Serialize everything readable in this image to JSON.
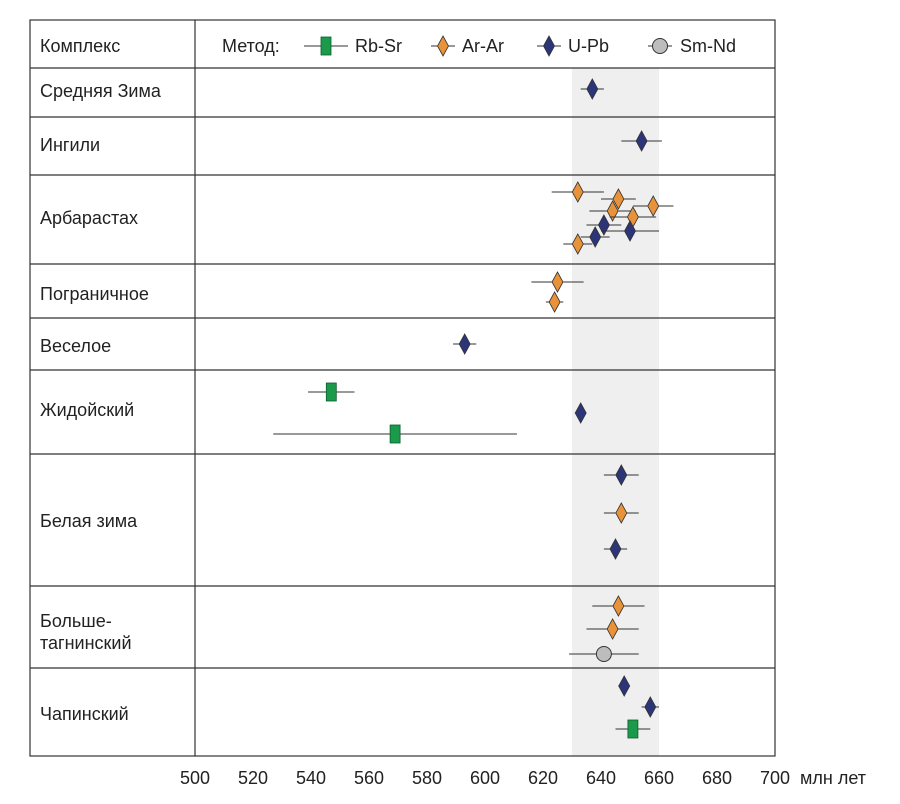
{
  "chart_data": {
    "type": "scatter",
    "header_label": "Комплекс",
    "legend_title": "Метод:",
    "x_unit": "млн лет",
    "xlim": [
      500,
      700
    ],
    "xticks": [
      500,
      520,
      540,
      560,
      580,
      600,
      620,
      640,
      660,
      680,
      700
    ],
    "highlight_band": [
      630,
      660
    ],
    "series": [
      {
        "name": "Rb-Sr",
        "color": "#1a9a4a",
        "marker": "square"
      },
      {
        "name": "Ar-Ar",
        "color": "#e8923a",
        "marker": "diamond"
      },
      {
        "name": "U-Pb",
        "color": "#2b3578",
        "marker": "diamond"
      },
      {
        "name": "Sm-Nd",
        "color": "#bdbdbd",
        "marker": "circle"
      }
    ],
    "groups": [
      {
        "name": "Средняя Зима",
        "points": [
          {
            "method": "U-Pb",
            "age": 637,
            "err": 4
          }
        ]
      },
      {
        "name": "Ингили",
        "points": [
          {
            "method": "U-Pb",
            "age": 654,
            "err": 7
          }
        ]
      },
      {
        "name": "Арбарастах",
        "points": [
          {
            "method": "Ar-Ar",
            "age": 632,
            "err": 9
          },
          {
            "method": "Ar-Ar",
            "age": 646,
            "err": 6
          },
          {
            "method": "Ar-Ar",
            "age": 658,
            "err": 7
          },
          {
            "method": "Ar-Ar",
            "age": 644,
            "err": 8
          },
          {
            "method": "Ar-Ar",
            "age": 651,
            "err": 8
          },
          {
            "method": "U-Pb",
            "age": 641,
            "err": 6
          },
          {
            "method": "U-Pb",
            "age": 650,
            "err": 10
          },
          {
            "method": "U-Pb",
            "age": 638,
            "err": 5
          },
          {
            "method": "Ar-Ar",
            "age": 632,
            "err": 5
          }
        ]
      },
      {
        "name": "Пограничное",
        "points": [
          {
            "method": "Ar-Ar",
            "age": 625,
            "err": 9
          },
          {
            "method": "Ar-Ar",
            "age": 624,
            "err": 3
          }
        ]
      },
      {
        "name": "Веселое",
        "points": [
          {
            "method": "U-Pb",
            "age": 593,
            "err": 4
          }
        ]
      },
      {
        "name": "Жидойский",
        "points": [
          {
            "method": "Rb-Sr",
            "age": 547,
            "err": 8
          },
          {
            "method": "U-Pb",
            "age": 633,
            "err": 2
          },
          {
            "method": "Rb-Sr",
            "age": 569,
            "err": 42
          }
        ]
      },
      {
        "name": "Белая зима",
        "points": [
          {
            "method": "U-Pb",
            "age": 647,
            "err": 6
          },
          {
            "method": "Ar-Ar",
            "age": 647,
            "err": 6
          },
          {
            "method": "U-Pb",
            "age": 645,
            "err": 4
          }
        ]
      },
      {
        "name": "Больше-тагнинский",
        "points": [
          {
            "method": "Ar-Ar",
            "age": 646,
            "err": 9
          },
          {
            "method": "Ar-Ar",
            "age": 644,
            "err": 9
          },
          {
            "method": "Sm-Nd",
            "age": 641,
            "err": 12
          }
        ]
      },
      {
        "name": "Чапинский",
        "points": [
          {
            "method": "U-Pb",
            "age": 648,
            "err": 2
          },
          {
            "method": "U-Pb",
            "age": 657,
            "err": 3
          },
          {
            "method": "Rb-Sr",
            "age": 651,
            "err": 6
          }
        ]
      }
    ]
  },
  "labels": {
    "header": "Комплекс",
    "legend_title": "Метод:",
    "unit": "млн лет",
    "groups": [
      "Средняя Зима",
      "Ингили",
      "Арбарастах",
      "Пограничное",
      "Веселое",
      "Жидойский",
      "Белая зима",
      "Больше-",
      "тагнинский",
      "Чапинский"
    ]
  }
}
